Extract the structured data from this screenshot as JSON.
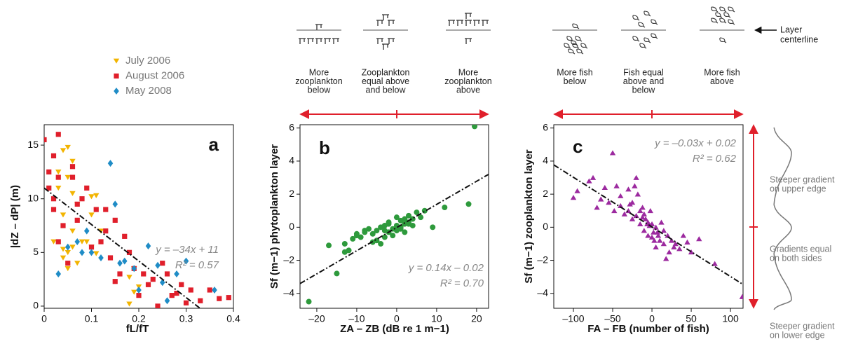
{
  "chart_data": [
    {
      "type": "scatter",
      "panel": "a",
      "xlabel": "fL/fT",
      "ylabel": "|dZ – dP| (m)",
      "xlim": [
        0,
        0.4
      ],
      "ylim": [
        -0.2,
        16.9
      ],
      "xticks": [
        0,
        0.1,
        0.2,
        0.3,
        0.4
      ],
      "yticks": [
        0,
        5,
        10,
        15
      ],
      "legend": true,
      "fit": {
        "slope": -34,
        "intercept": 11,
        "equation": "y = –34x + 11",
        "r2": "R² = 0.57"
      },
      "series": [
        {
          "name": "July 2006",
          "color": "#f2b400",
          "marker": "triangle-down",
          "x": [
            0.04,
            0.05,
            0.06,
            0.05,
            0.03,
            0.07,
            0.04,
            0.06,
            0.02,
            0.05,
            0.04,
            0.06,
            0.08,
            0.1,
            0.11,
            0.1,
            0.12,
            0.09,
            0.07,
            0.05,
            0.04,
            0.1,
            0.11,
            0.18,
            0.19,
            0.2,
            0.18,
            0.19,
            0.06,
            0.03
          ],
          "values": [
            14.5,
            14.8,
            13.5,
            12,
            11,
            9.5,
            8.5,
            7,
            6,
            5,
            4.5,
            5.5,
            6,
            10.2,
            10.3,
            8.5,
            7,
            6,
            4,
            3.5,
            5.3,
            5.5,
            4.9,
            2.7,
            1.3,
            1.8,
            0.2,
            3.5,
            10.5,
            12.5
          ]
        },
        {
          "name": "August 2006",
          "color": "#e01f2b",
          "marker": "square",
          "x": [
            0,
            0.01,
            0.02,
            0.03,
            0.01,
            0.02,
            0.04,
            0.06,
            0.08,
            0.03,
            0.05,
            0.07,
            0.09,
            0.11,
            0.13,
            0.15,
            0.17,
            0.19,
            0.21,
            0.23,
            0.25,
            0.27,
            0.29,
            0.31,
            0.33,
            0.35,
            0.37,
            0.39,
            0.12,
            0.14,
            0.16,
            0.18,
            0.2,
            0.22,
            0.24,
            0.26,
            0.28,
            0.3,
            0.02,
            0.06,
            0.1,
            0.15,
            0.03,
            0.07,
            0.13
          ],
          "values": [
            15.5,
            12.5,
            14,
            16,
            11,
            9,
            7.5,
            12,
            10,
            6,
            4,
            8,
            11,
            9,
            7,
            8,
            6.5,
            3.5,
            3,
            2.5,
            4,
            1,
            2,
            1.5,
            0.5,
            1.5,
            0.7,
            0.8,
            6,
            4.5,
            3,
            5,
            1,
            2,
            0,
            3,
            1.2,
            0.3,
            10,
            13,
            5.5,
            2.3,
            12,
            9.5,
            9
          ]
        },
        {
          "name": "May 2008",
          "color": "#1f8cc6",
          "marker": "diamond",
          "x": [
            0.05,
            0.07,
            0.09,
            0.1,
            0.12,
            0.14,
            0.15,
            0.17,
            0.19,
            0.2,
            0.22,
            0.24,
            0.26,
            0.28,
            0.3,
            0.36,
            0.03,
            0.08,
            0.16,
            0.25
          ],
          "values": [
            5.5,
            6,
            7,
            5,
            4.5,
            13.3,
            9.5,
            4.2,
            3.5,
            1.5,
            5.6,
            3.8,
            0.5,
            3,
            4.2,
            1.5,
            3,
            5,
            4,
            2.2
          ]
        }
      ]
    },
    {
      "type": "scatter",
      "panel": "b",
      "xlabel": "ZA – ZB (dB re 1 m−1)",
      "ylabel": "Sf (m−1) phytoplankton layer",
      "xlim": [
        -24.2,
        23
      ],
      "ylim": [
        -4.9,
        6.2
      ],
      "xticks": [
        {
          "value": -20,
          "label": "–20"
        },
        {
          "value": -10,
          "label": "–10"
        },
        0,
        10,
        20
      ],
      "yticks": [
        {
          "value": -4,
          "label": "–4"
        },
        {
          "value": -2,
          "label": "–2"
        },
        0,
        2,
        4,
        6
      ],
      "legend": false,
      "fit": {
        "slope": 0.14,
        "intercept": -0.02,
        "equation": "y = 0.14x – 0.02",
        "r2": "R² = 0.70"
      },
      "series": [
        {
          "name": "Phytoplankton layer",
          "color": "#2e9a3c",
          "marker": "circle",
          "x": [
            -22,
            -17,
            -15,
            -13,
            -12,
            -11,
            -10,
            -9,
            -8,
            -7,
            -6,
            -5,
            -5,
            -4,
            -4,
            -3,
            -3,
            -2,
            -2,
            -1,
            -1,
            0,
            0,
            1,
            1,
            2,
            2,
            3,
            3,
            4,
            5,
            6,
            7,
            9,
            12,
            18,
            19.5,
            -6,
            -3,
            -2,
            0,
            2,
            4,
            -8,
            -10,
            1,
            3,
            -13
          ],
          "values": [
            -4.5,
            -1.1,
            -2.8,
            -1,
            -1.4,
            -0.7,
            -0.5,
            -0.6,
            -0.3,
            -0.1,
            -0.9,
            -0.2,
            -0.8,
            0,
            -1,
            0.1,
            -0.6,
            -0.3,
            0.2,
            -0.1,
            -0.5,
            0.1,
            0.6,
            0,
            0.4,
            0.2,
            0.5,
            0.3,
            0.7,
            0.5,
            0.9,
            0.6,
            1,
            0,
            1.2,
            1.4,
            6.1,
            -0.4,
            -0.2,
            0.3,
            -0.2,
            -0.3,
            0.1,
            -0.2,
            -0.4,
            -0.1,
            0.2,
            -1.5
          ]
        }
      ]
    },
    {
      "type": "scatter",
      "panel": "c",
      "xlabel": "FA – FB (number of fish)",
      "ylabel": "Sf (m−1) zooplankton layer",
      "xlim": [
        -125,
        116
      ],
      "ylim": [
        -4.9,
        6.2
      ],
      "xticks": [
        {
          "value": -100,
          "label": "–100"
        },
        {
          "value": -50,
          "label": "–50"
        },
        0,
        50,
        100
      ],
      "yticks": [
        {
          "value": -4,
          "label": "–4"
        },
        {
          "value": -2,
          "label": "–2"
        },
        0,
        2,
        4,
        6
      ],
      "legend": false,
      "fit": {
        "slope": -0.03,
        "intercept": 0.02,
        "equation": "y = –0.03x + 0.02",
        "r2": "R² = 0.62"
      },
      "series": [
        {
          "name": "Zooplankton layer",
          "color": "#9c2a9f",
          "marker": "triangle-up",
          "x": [
            -100,
            -80,
            -70,
            -60,
            -55,
            -50,
            -45,
            -40,
            -35,
            -30,
            -30,
            -25,
            -25,
            -20,
            -20,
            -18,
            -15,
            -15,
            -12,
            -10,
            -10,
            -8,
            -5,
            -5,
            -3,
            0,
            0,
            2,
            5,
            5,
            8,
            10,
            12,
            15,
            15,
            20,
            22,
            25,
            30,
            35,
            40,
            50,
            60,
            80,
            115,
            -65,
            -40,
            -28,
            -22,
            -12,
            -6,
            -2,
            3,
            7,
            18,
            28,
            45,
            -95,
            -75,
            -48
          ],
          "values": [
            1.8,
            2.8,
            1.2,
            2.4,
            1.5,
            4.5,
            2.5,
            1.3,
            0.8,
            2.3,
            1.0,
            1.5,
            0.5,
            3.0,
            0.7,
            2.0,
            1.0,
            0.2,
            1.2,
            0.8,
            -0.2,
            0.5,
            0.3,
            -0.5,
            0.1,
            0.2,
            -0.6,
            -0.3,
            0.0,
            -1.2,
            -0.5,
            -0.8,
            0.3,
            -1.0,
            -0.2,
            -0.5,
            -1.5,
            -0.8,
            -1.0,
            -1.3,
            -0.5,
            -1.5,
            -0.7,
            -2.2,
            -4.2,
            1.7,
            1.9,
            1.4,
            2.5,
            0.6,
            0.2,
            1.0,
            -0.8,
            -0.3,
            -1.9,
            -1.2,
            -0.9,
            2.2,
            3.0,
            1.0
          ]
        }
      ]
    }
  ],
  "diagram": {
    "zooplankton": [
      [
        "More",
        "zooplankton",
        "below"
      ],
      [
        "Zooplankton",
        "equal above",
        "and below"
      ],
      [
        "More",
        "zooplankton",
        "above"
      ]
    ],
    "fish": [
      [
        "More fish",
        "below"
      ],
      [
        "Fish equal",
        "above and",
        "below"
      ],
      [
        "More fish",
        "above"
      ]
    ],
    "centerline": [
      "Layer",
      "centerline"
    ],
    "gradients": [
      [
        "Steeper gradient",
        "on upper edge"
      ],
      [
        "Gradients equal",
        "on both sides"
      ],
      [
        "Steeper gradient",
        "on lower edge"
      ]
    ]
  }
}
